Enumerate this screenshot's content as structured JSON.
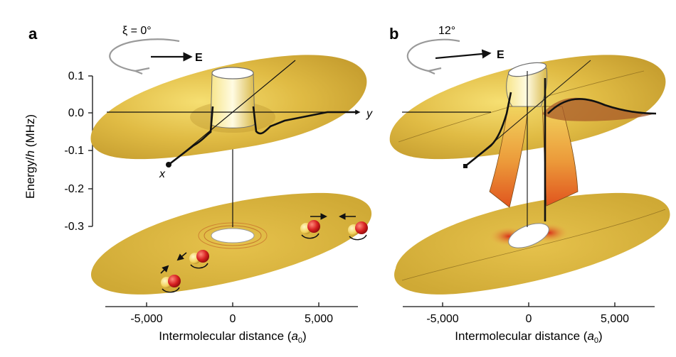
{
  "panel_a": {
    "letter": "a",
    "angle_label": "ξ = 0°",
    "field_label": "E",
    "x_label": "x",
    "y_label": "y",
    "y_axis_title_prefix": "Energy/",
    "y_axis_title_var": "h",
    "y_axis_title_suffix": " (MHz)",
    "y_ticks": [
      "0.1",
      "0.0",
      "-0.1",
      "-0.2",
      "-0.3"
    ],
    "x_ticks": [
      "-5,000",
      "0",
      "5,000"
    ],
    "x_axis_title_prefix": "Intermolecular distance (",
    "x_axis_title_var": "a",
    "x_axis_title_sub": "0",
    "x_axis_title_suffix": ")"
  },
  "panel_b": {
    "letter": "b",
    "angle_label": "12°",
    "field_label": "E",
    "x_ticks": [
      "-5,000",
      "0",
      "5,000"
    ],
    "x_axis_title_prefix": "Intermolecular distance (",
    "x_axis_title_var": "a",
    "x_axis_title_sub": "0",
    "x_axis_title_suffix": ")"
  },
  "colors": {
    "surface": "#d8b23a",
    "surface_light": "#f2d866",
    "surface_dark": "#b8902a",
    "hot": "#e0541e",
    "molecule_red": "#d62020",
    "molecule_yellow": "#f2d15a",
    "arrow_gray": "#9a9a9a"
  },
  "icons": [
    "rotation-ellipse-icon",
    "field-arrow-icon",
    "molecule-icon"
  ]
}
